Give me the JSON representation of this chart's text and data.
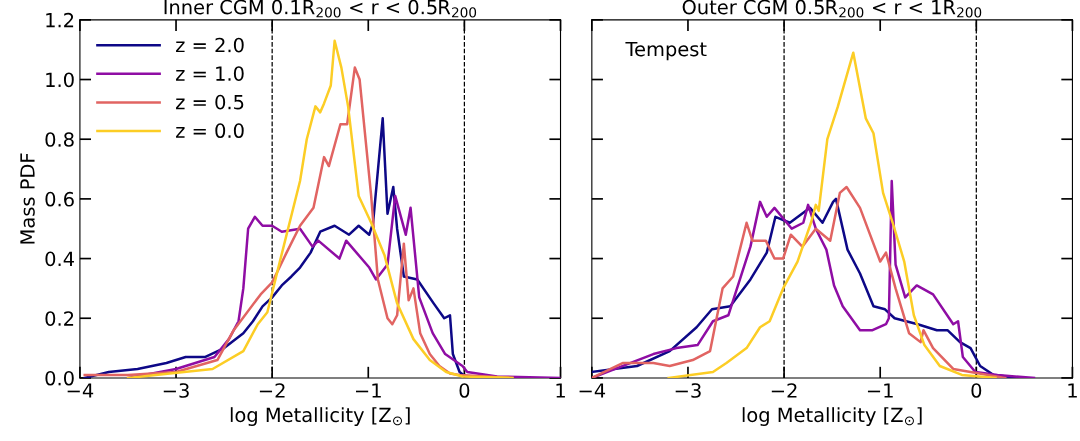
{
  "chart_data": [
    {
      "type": "line",
      "title": "Inner CGM 0.1R$_{200}$ < r < 0.5R$_{200}$",
      "xlabel": "log Metallicity [Z$_{⊙}$]",
      "ylabel": "Mass PDF",
      "xlim": [
        -4,
        1
      ],
      "ylim": [
        0,
        1.2
      ],
      "xticks": [
        {
          "value": -4,
          "label": "−4"
        },
        {
          "value": -3,
          "label": "−3"
        },
        {
          "value": -2,
          "label": "−2"
        },
        {
          "value": -1,
          "label": "−1"
        },
        0,
        1
      ],
      "yticks": [
        {
          "value": 0,
          "label": "0.0"
        },
        {
          "value": 0.2,
          "label": "0.2"
        },
        {
          "value": 0.4,
          "label": "0.4"
        },
        {
          "value": 0.6,
          "label": "0.6"
        },
        {
          "value": 0.8,
          "label": "0.8"
        },
        {
          "value": 1.0,
          "label": "1.0"
        },
        {
          "value": 1.2,
          "label": "1.2"
        }
      ],
      "grid": false,
      "legend": "top left",
      "line_style": "solid",
      "marker": "none",
      "ref_lines": [
        {
          "axis": "x",
          "value": -2,
          "color": "#000000",
          "line_style": "dashed"
        },
        {
          "axis": "x",
          "value": 0,
          "color": "#000000",
          "line_style": "dashed"
        }
      ],
      "series": [
        {
          "name": "z = 2.0",
          "color": "#0d0887",
          "x": [
            -3.95,
            -3.7,
            -3.4,
            -3.1,
            -2.9,
            -2.7,
            -2.5,
            -2.3,
            -2.2,
            -2.1,
            -2.0,
            -1.9,
            -1.8,
            -1.71,
            -1.6,
            -1.5,
            -1.35,
            -1.2,
            -1.1,
            -0.99,
            -0.95,
            -0.85,
            -0.8,
            -0.74,
            -0.7,
            -0.63,
            -0.49,
            -0.32,
            -0.21,
            -0.15,
            -0.12,
            -0.05,
            0.03
          ],
          "values": [
            0.0,
            0.02,
            0.03,
            0.05,
            0.07,
            0.07,
            0.1,
            0.15,
            0.19,
            0.24,
            0.27,
            0.31,
            0.34,
            0.37,
            0.42,
            0.49,
            0.51,
            0.48,
            0.51,
            0.48,
            0.52,
            0.87,
            0.55,
            0.64,
            0.5,
            0.34,
            0.33,
            0.25,
            0.2,
            0.21,
            0.08,
            0.02,
            0.0
          ]
        },
        {
          "name": "z = 1.0",
          "color": "#8f0da4",
          "x": [
            -3.5,
            -3.0,
            -2.8,
            -2.6,
            -2.45,
            -2.35,
            -2.3,
            -2.25,
            -2.18,
            -2.1,
            -2.0,
            -1.9,
            -1.71,
            -1.58,
            -1.52,
            -1.3,
            -1.23,
            -0.99,
            -0.92,
            -0.8,
            -0.72,
            -0.61,
            -0.56,
            -0.47,
            -0.33,
            -0.2,
            -0.02,
            0.03,
            0.34,
            1.0
          ],
          "values": [
            0.0,
            0.03,
            0.05,
            0.07,
            0.13,
            0.19,
            0.3,
            0.5,
            0.54,
            0.51,
            0.51,
            0.49,
            0.5,
            0.44,
            0.46,
            0.4,
            0.46,
            0.37,
            0.33,
            0.38,
            0.61,
            0.48,
            0.57,
            0.27,
            0.15,
            0.08,
            0.04,
            0.02,
            0.005,
            0.0
          ]
        },
        {
          "name": "z = 0.5",
          "color": "#e16462",
          "x": [
            -3.95,
            -3.5,
            -3.0,
            -2.57,
            -2.4,
            -2.12,
            -2.0,
            -1.85,
            -1.71,
            -1.57,
            -1.46,
            -1.41,
            -1.29,
            -1.22,
            -1.14,
            -1.09,
            -0.97,
            -0.9,
            -0.8,
            -0.75,
            -0.7,
            -0.63,
            -0.58,
            -0.53,
            -0.46,
            -0.36,
            -0.26,
            -0.15,
            -0.05,
            0.5
          ],
          "values": [
            0.01,
            0.01,
            0.02,
            0.06,
            0.16,
            0.28,
            0.32,
            0.42,
            0.51,
            0.57,
            0.74,
            0.71,
            0.85,
            0.85,
            1.04,
            1.0,
            0.61,
            0.33,
            0.2,
            0.18,
            0.21,
            0.45,
            0.26,
            0.3,
            0.15,
            0.08,
            0.04,
            0.015,
            0.01,
            0.0
          ]
        },
        {
          "name": "z = 0.0",
          "color": "#fccd25",
          "x": [
            -3.5,
            -2.62,
            -2.3,
            -2.15,
            -2.05,
            -1.92,
            -1.71,
            -1.64,
            -1.55,
            -1.5,
            -1.46,
            -1.39,
            -1.35,
            -1.28,
            -1.21,
            -1.1,
            -0.97,
            -0.83,
            -0.7,
            -0.53,
            -0.36,
            -0.19,
            -0.02,
            0.5
          ],
          "values": [
            0.0,
            0.03,
            0.09,
            0.18,
            0.22,
            0.39,
            0.66,
            0.8,
            0.91,
            0.89,
            0.92,
            0.98,
            1.13,
            1.04,
            0.91,
            0.61,
            0.52,
            0.41,
            0.25,
            0.13,
            0.06,
            0.02,
            0.005,
            0.0
          ]
        }
      ]
    },
    {
      "type": "line",
      "title": "Outer CGM 0.5R$_{200}$ < r < 1R$_{200}$",
      "xlabel": "log Metallicity [Z$_{⊙}$]",
      "xlim": [
        -4,
        1
      ],
      "ylim": [
        0,
        1.2
      ],
      "xticks": [
        {
          "value": -4,
          "label": "−4"
        },
        {
          "value": -3,
          "label": "−3"
        },
        {
          "value": -2,
          "label": "−2"
        },
        {
          "value": -1,
          "label": "−1"
        },
        0,
        1
      ],
      "yticks": [
        {
          "value": 0,
          "label": null
        },
        {
          "value": 0.2,
          "label": null
        },
        {
          "value": 0.4,
          "label": null
        },
        {
          "value": 0.6,
          "label": null
        },
        {
          "value": 0.8,
          "label": null
        },
        {
          "value": 1.0,
          "label": null
        },
        {
          "value": 1.2,
          "label": null
        }
      ],
      "tick_labels": "x",
      "grid": false,
      "line_style": "solid",
      "marker": "none",
      "annotations": [
        "Tempest"
      ],
      "ref_lines": [
        {
          "axis": "x",
          "value": -2,
          "color": "#000000",
          "line_style": "dashed"
        },
        {
          "axis": "x",
          "value": 0,
          "color": "#000000",
          "line_style": "dashed"
        }
      ],
      "series": [
        {
          "color": "#0d0887",
          "x": [
            -4.0,
            -3.53,
            -3.19,
            -2.91,
            -2.75,
            -2.56,
            -2.35,
            -2.18,
            -2.09,
            -1.94,
            -1.73,
            -1.6,
            -1.49,
            -1.46,
            -1.34,
            -1.21,
            -1.07,
            -0.95,
            -0.85,
            -0.61,
            -0.41,
            -0.3,
            -0.17,
            -0.06,
            0.04,
            0.18,
            0.45
          ],
          "values": [
            0.02,
            0.04,
            0.09,
            0.17,
            0.23,
            0.24,
            0.33,
            0.42,
            0.54,
            0.52,
            0.57,
            0.52,
            0.59,
            0.6,
            0.43,
            0.35,
            0.24,
            0.23,
            0.2,
            0.18,
            0.16,
            0.16,
            0.12,
            0.1,
            0.04,
            0.01,
            0.0
          ]
        },
        {
          "color": "#8f0da4",
          "x": [
            -4.0,
            -3.36,
            -3.12,
            -2.9,
            -2.74,
            -2.58,
            -2.35,
            -2.25,
            -2.18,
            -2.1,
            -1.92,
            -1.8,
            -1.75,
            -1.67,
            -1.56,
            -1.48,
            -1.39,
            -1.21,
            -1.08,
            -0.94,
            -0.91,
            -0.88,
            -0.84,
            -0.74,
            -0.62,
            -0.45,
            -0.24,
            -0.19,
            -0.14,
            -0.01,
            0.22,
            0.6
          ],
          "values": [
            0.0,
            0.08,
            0.1,
            0.11,
            0.19,
            0.21,
            0.44,
            0.59,
            0.54,
            0.57,
            0.5,
            0.52,
            0.58,
            0.5,
            0.43,
            0.31,
            0.24,
            0.16,
            0.16,
            0.18,
            0.2,
            0.66,
            0.38,
            0.27,
            0.31,
            0.28,
            0.18,
            0.19,
            0.07,
            0.02,
            0.01,
            0.0
          ]
        },
        {
          "color": "#e16462",
          "x": [
            -4.0,
            -3.68,
            -3.36,
            -3.19,
            -2.95,
            -2.77,
            -2.64,
            -2.53,
            -2.39,
            -2.33,
            -2.19,
            -2.1,
            -2.01,
            -1.93,
            -1.81,
            -1.67,
            -1.52,
            -1.42,
            -1.35,
            -1.21,
            -1.0,
            -0.94,
            -0.84,
            -0.7,
            -0.58,
            -0.55,
            -0.45,
            -0.24,
            -0.06,
            0.3
          ],
          "values": [
            0.0,
            0.05,
            0.05,
            0.04,
            0.06,
            0.09,
            0.3,
            0.34,
            0.52,
            0.46,
            0.46,
            0.4,
            0.4,
            0.48,
            0.44,
            0.5,
            0.46,
            0.62,
            0.64,
            0.57,
            0.39,
            0.42,
            0.3,
            0.15,
            0.12,
            0.16,
            0.1,
            0.03,
            0.02,
            0.0
          ]
        },
        {
          "color": "#fccd25",
          "x": [
            -3.2,
            -2.74,
            -2.6,
            -2.39,
            -2.25,
            -2.15,
            -2.01,
            -1.86,
            -1.72,
            -1.67,
            -1.64,
            -1.55,
            -1.44,
            -1.28,
            -1.15,
            -1.07,
            -0.97,
            -0.87,
            -0.75,
            -0.65,
            -0.54,
            -0.38,
            -0.15,
            0.2
          ],
          "values": [
            0.0,
            0.02,
            0.05,
            0.1,
            0.17,
            0.19,
            0.3,
            0.39,
            0.52,
            0.58,
            0.56,
            0.8,
            0.91,
            1.09,
            0.87,
            0.82,
            0.62,
            0.52,
            0.39,
            0.21,
            0.11,
            0.04,
            0.01,
            0.0
          ]
        }
      ]
    }
  ]
}
